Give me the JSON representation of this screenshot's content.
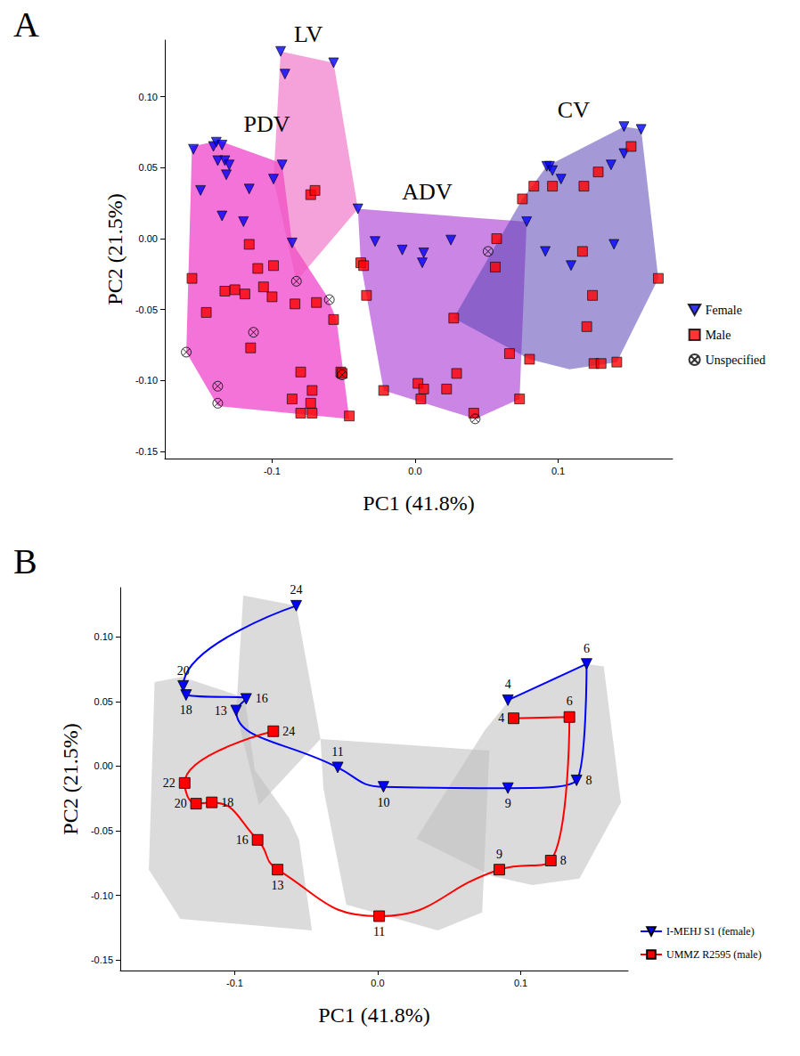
{
  "chart_data": [
    {
      "type": "scatter",
      "panel": "A",
      "x_label": "PC1 (41.8%)",
      "y_label": "PC2 (21.5%)",
      "xlim": [
        -0.175,
        0.18
      ],
      "xticks": [
        -0.1,
        {
          "value": 0,
          "label": "0.0"
        },
        0.1
      ],
      "ylim": [
        -0.155,
        0.14
      ],
      "yticks": [
        -0.15,
        {
          "value": -0.1,
          "label": "-0.10"
        },
        -0.05,
        {
          "value": 0,
          "label": "0.00"
        },
        0.05,
        {
          "value": 0.1,
          "label": "0.10"
        }
      ],
      "grid": false,
      "legend": "right",
      "regions": [
        {
          "name": "PDV",
          "color": "#ea00b8",
          "vertices": [
            [
              -0.156,
              0.065
            ],
            [
              -0.137,
              0.069
            ],
            [
              -0.093,
              0.053
            ],
            [
              -0.086,
              -0.003
            ],
            [
              -0.062,
              -0.04
            ],
            [
              -0.055,
              -0.057
            ],
            [
              -0.046,
              -0.127
            ],
            [
              -0.138,
              -0.118
            ],
            [
              -0.16,
              -0.08
            ]
          ]
        },
        {
          "name": "LV",
          "color": "#ee55bb",
          "vertices": [
            [
              -0.094,
              0.132
            ],
            [
              -0.057,
              0.124
            ],
            [
              -0.04,
              0.021
            ],
            [
              -0.083,
              -0.03
            ],
            [
              -0.099,
              0.042
            ]
          ]
        },
        {
          "name": "ADV",
          "color": "#a020d0",
          "vertices": [
            [
              -0.04,
              0.021
            ],
            [
              0.078,
              0.012
            ],
            [
              0.073,
              -0.113
            ],
            [
              0.042,
              -0.127
            ],
            [
              -0.022,
              -0.107
            ],
            [
              -0.034,
              -0.04
            ],
            [
              -0.038,
              -0.017
            ]
          ]
        },
        {
          "name": "CV",
          "color": "#5a46b4",
          "vertices": [
            [
              0.146,
              0.079
            ],
            [
              0.158,
              0.077
            ],
            [
              0.17,
              -0.028
            ],
            [
              0.141,
              -0.087
            ],
            [
              0.108,
              -0.092
            ],
            [
              0.08,
              -0.085
            ],
            [
              0.027,
              -0.056
            ],
            [
              0.075,
              0.028
            ],
            [
              0.092,
              0.051
            ]
          ]
        }
      ],
      "series": [
        {
          "name": "Female",
          "color": "#0000ff",
          "marker": "triangle-down",
          "points": [
            [
              -0.155,
              0.063
            ],
            [
              -0.15,
              0.034
            ],
            [
              -0.141,
              0.065
            ],
            [
              -0.139,
              0.068
            ],
            [
              -0.135,
              0.066
            ],
            [
              -0.138,
              0.055
            ],
            [
              -0.133,
              0.055
            ],
            [
              -0.13,
              0.052
            ],
            [
              -0.132,
              0.045
            ],
            [
              -0.135,
              0.016
            ],
            [
              -0.12,
              0.012
            ],
            [
              -0.116,
              0.035
            ],
            [
              -0.099,
              0.042
            ],
            [
              -0.093,
              0.052
            ],
            [
              -0.086,
              -0.003
            ],
            [
              -0.094,
              0.132
            ],
            [
              -0.091,
              0.116
            ],
            [
              -0.057,
              0.124
            ],
            [
              -0.04,
              0.021
            ],
            [
              -0.028,
              -0.002
            ],
            [
              -0.009,
              -0.008
            ],
            [
              0.006,
              -0.01
            ],
            [
              0.005,
              -0.017
            ],
            [
              0.025,
              -0.001
            ],
            [
              0.078,
              0.012
            ],
            [
              0.092,
              0.051
            ],
            [
              0.094,
              0.051
            ],
            [
              0.096,
              0.048
            ],
            [
              0.102,
              0.042
            ],
            [
              0.091,
              -0.009
            ],
            [
              0.109,
              -0.019
            ],
            [
              0.137,
              0.052
            ],
            [
              0.139,
              -0.004
            ],
            [
              0.146,
              0.079
            ],
            [
              0.158,
              0.077
            ],
            [
              0.146,
              0.06
            ]
          ]
        },
        {
          "name": "Male",
          "color": "#ff0000",
          "marker": "square",
          "points": [
            [
              -0.156,
              -0.028
            ],
            [
              -0.146,
              -0.052
            ],
            [
              -0.133,
              -0.037
            ],
            [
              -0.126,
              -0.036
            ],
            [
              -0.119,
              -0.039
            ],
            [
              -0.116,
              -0.004
            ],
            [
              -0.11,
              -0.021
            ],
            [
              -0.106,
              -0.034
            ],
            [
              -0.1,
              -0.041
            ],
            [
              -0.099,
              -0.019
            ],
            [
              -0.115,
              -0.077
            ],
            [
              -0.086,
              -0.113
            ],
            [
              -0.08,
              -0.094
            ],
            [
              -0.084,
              -0.046
            ],
            [
              -0.08,
              -0.123
            ],
            [
              -0.073,
              -0.116
            ],
            [
              -0.072,
              -0.123
            ],
            [
              -0.072,
              -0.107
            ],
            [
              -0.069,
              -0.045
            ],
            [
              -0.057,
              -0.057
            ],
            [
              -0.052,
              -0.094
            ],
            [
              -0.051,
              -0.095
            ],
            [
              -0.046,
              -0.125
            ],
            [
              -0.073,
              0.031
            ],
            [
              -0.07,
              0.034
            ],
            [
              -0.038,
              -0.017
            ],
            [
              -0.036,
              -0.019
            ],
            [
              -0.034,
              -0.04
            ],
            [
              -0.022,
              -0.107
            ],
            [
              0.002,
              -0.102
            ],
            [
              0.006,
              -0.106
            ],
            [
              0.004,
              -0.113
            ],
            [
              0.022,
              -0.106
            ],
            [
              0.029,
              -0.095
            ],
            [
              0.027,
              -0.056
            ],
            [
              0.041,
              -0.123
            ],
            [
              0.057,
              0.0
            ],
            [
              0.056,
              -0.02
            ],
            [
              0.066,
              -0.081
            ],
            [
              0.073,
              -0.113
            ],
            [
              0.075,
              0.028
            ],
            [
              0.083,
              0.037
            ],
            [
              0.096,
              0.037
            ],
            [
              0.08,
              -0.085
            ],
            [
              0.117,
              -0.009
            ],
            [
              0.118,
              0.037
            ],
            [
              0.128,
              0.047
            ],
            [
              0.124,
              -0.04
            ],
            [
              0.12,
              -0.062
            ],
            [
              0.125,
              -0.088
            ],
            [
              0.13,
              -0.088
            ],
            [
              0.141,
              -0.087
            ],
            [
              0.151,
              0.065
            ],
            [
              0.17,
              -0.028
            ]
          ]
        },
        {
          "name": "Unspecified",
          "color": "#000000",
          "marker": "circled-x",
          "points": [
            [
              -0.16,
              -0.08
            ],
            [
              -0.138,
              -0.104
            ],
            [
              -0.138,
              -0.116
            ],
            [
              -0.113,
              -0.066
            ],
            [
              -0.083,
              -0.03
            ],
            [
              -0.06,
              -0.043
            ],
            [
              -0.051,
              -0.096
            ],
            [
              0.051,
              -0.009
            ],
            [
              0.042,
              -0.127
            ]
          ]
        }
      ]
    },
    {
      "type": "line",
      "panel": "B",
      "x_label": "PC1 (41.8%)",
      "y_label": "PC2 (21.5%)",
      "xlim": [
        -0.18,
        0.175
      ],
      "xticks": [
        -0.1,
        {
          "value": 0,
          "label": "0.0"
        },
        0.1
      ],
      "ylim": [
        -0.158,
        0.138
      ],
      "yticks": [
        -0.15,
        {
          "value": -0.1,
          "label": "-0.10"
        },
        -0.05,
        {
          "value": 0,
          "label": "0.00"
        },
        0.05,
        {
          "value": 0.1,
          "label": "0.10"
        }
      ],
      "grid": false,
      "legend": "bottom-right",
      "regions": [
        {
          "color": "#bdbdbd",
          "vertices": [
            [
              -0.156,
              0.065
            ],
            [
              -0.137,
              0.069
            ],
            [
              -0.093,
              0.053
            ],
            [
              -0.086,
              -0.003
            ],
            [
              -0.062,
              -0.04
            ],
            [
              -0.055,
              -0.057
            ],
            [
              -0.046,
              -0.127
            ],
            [
              -0.138,
              -0.118
            ],
            [
              -0.16,
              -0.08
            ]
          ]
        },
        {
          "color": "#bdbdbd",
          "vertices": [
            [
              -0.094,
              0.132
            ],
            [
              -0.057,
              0.124
            ],
            [
              -0.04,
              0.021
            ],
            [
              -0.083,
              -0.03
            ],
            [
              -0.099,
              0.042
            ]
          ]
        },
        {
          "color": "#bdbdbd",
          "vertices": [
            [
              -0.04,
              0.021
            ],
            [
              0.078,
              0.012
            ],
            [
              0.073,
              -0.113
            ],
            [
              0.042,
              -0.127
            ],
            [
              -0.022,
              -0.107
            ],
            [
              -0.034,
              -0.04
            ],
            [
              -0.038,
              -0.017
            ]
          ]
        },
        {
          "color": "#bdbdbd",
          "vertices": [
            [
              0.146,
              0.079
            ],
            [
              0.158,
              0.077
            ],
            [
              0.17,
              -0.028
            ],
            [
              0.141,
              -0.087
            ],
            [
              0.108,
              -0.092
            ],
            [
              0.08,
              -0.085
            ],
            [
              0.027,
              -0.056
            ],
            [
              0.075,
              0.028
            ],
            [
              0.092,
              0.051
            ]
          ]
        }
      ],
      "series": [
        {
          "name": "I-MEHJ S1 (female)",
          "color": "#0000ff",
          "marker": "triangle-down",
          "line_style": "solid",
          "points": [
            [
              0.091,
              0.051
            ],
            [
              0.146,
              0.079
            ],
            [
              0.139,
              -0.011
            ],
            [
              0.091,
              -0.017
            ],
            [
              0.004,
              -0.016
            ],
            [
              -0.028,
              -0.001
            ],
            [
              -0.099,
              0.043
            ],
            [
              -0.092,
              0.052
            ],
            [
              -0.134,
              0.055
            ],
            [
              -0.136,
              0.062
            ],
            [
              -0.057,
              0.124
            ]
          ],
          "point_labels": [
            "4",
            "6",
            "8",
            "9",
            "10",
            "11",
            "13",
            "16",
            "18",
            "20",
            "24"
          ]
        },
        {
          "name": "UMMZ R2595 (male)",
          "color": "#ff0000",
          "marker": "square",
          "line_style": "solid",
          "points": [
            [
              0.095,
              0.037
            ],
            [
              0.134,
              0.038
            ],
            [
              0.121,
              -0.073
            ],
            [
              0.085,
              -0.08
            ],
            [
              0.001,
              -0.116
            ],
            [
              -0.07,
              -0.08
            ],
            [
              -0.084,
              -0.057
            ],
            [
              -0.116,
              -0.028
            ],
            [
              -0.127,
              -0.029
            ],
            [
              -0.135,
              -0.013
            ],
            [
              -0.073,
              0.027
            ]
          ],
          "point_labels": [
            "4",
            "6",
            "8",
            "9",
            "11",
            "13",
            "16",
            "18",
            "20",
            "22",
            "24"
          ]
        }
      ]
    }
  ]
}
